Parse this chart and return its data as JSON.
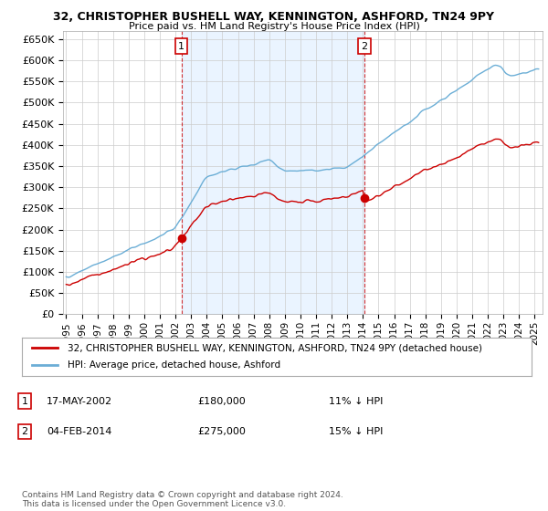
{
  "title": "32, CHRISTOPHER BUSHELL WAY, KENNINGTON, ASHFORD, TN24 9PY",
  "subtitle": "Price paid vs. HM Land Registry's House Price Index (HPI)",
  "ylim": [
    0,
    670000
  ],
  "yticks": [
    0,
    50000,
    100000,
    150000,
    200000,
    250000,
    300000,
    350000,
    400000,
    450000,
    500000,
    550000,
    600000,
    650000
  ],
  "xlim_start": 1994.8,
  "xlim_end": 2025.5,
  "xticks": [
    1995,
    1996,
    1997,
    1998,
    1999,
    2000,
    2001,
    2002,
    2003,
    2004,
    2005,
    2006,
    2007,
    2008,
    2009,
    2010,
    2011,
    2012,
    2013,
    2014,
    2015,
    2016,
    2017,
    2018,
    2019,
    2020,
    2021,
    2022,
    2023,
    2024,
    2025
  ],
  "sale1_x": 2002.38,
  "sale1_y": 180000,
  "sale2_x": 2014.09,
  "sale2_y": 275000,
  "hpi_color": "#6baed6",
  "price_color": "#cc0000",
  "shade_color": "#ddeeff",
  "legend_entries": [
    "32, CHRISTOPHER BUSHELL WAY, KENNINGTON, ASHFORD, TN24 9PY (detached house)",
    "HPI: Average price, detached house, Ashford"
  ],
  "annotation1_date": "17-MAY-2002",
  "annotation1_price": "£180,000",
  "annotation1_hpi": "11% ↓ HPI",
  "annotation2_date": "04-FEB-2014",
  "annotation2_price": "£275,000",
  "annotation2_hpi": "15% ↓ HPI",
  "footer": "Contains HM Land Registry data © Crown copyright and database right 2024.\nThis data is licensed under the Open Government Licence v3.0.",
  "bg_color": "#ffffff",
  "grid_color": "#cccccc"
}
